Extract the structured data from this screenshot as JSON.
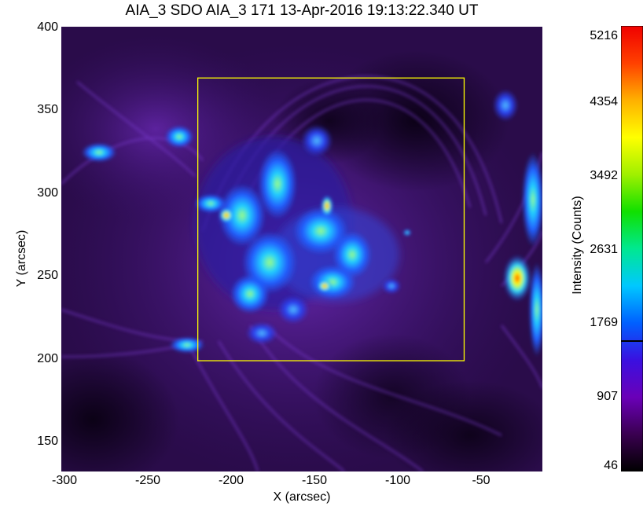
{
  "title": "AIA_3 SDO AIA_3 171 13-Apr-2016 19:13:22.340 UT",
  "x_axis": {
    "label": "X (arcsec)",
    "range": [
      -302,
      -13
    ],
    "ticks": [
      "-300",
      "-250",
      "-200",
      "-150",
      "-100",
      "-50"
    ],
    "tick_values": [
      -300,
      -250,
      -200,
      -150,
      -100,
      -50
    ]
  },
  "y_axis": {
    "label": "Y (arcsec)",
    "range": [
      133,
      402
    ],
    "ticks": [
      "150",
      "200",
      "250",
      "300",
      "350",
      "400"
    ],
    "tick_values": [
      150,
      200,
      250,
      300,
      350,
      400
    ]
  },
  "colorbar": {
    "label": "Intensity (Counts)",
    "range": [
      46,
      5216
    ],
    "ticks": [
      "5216",
      "4354",
      "3492",
      "2631",
      "1769",
      "907",
      "46"
    ],
    "tick_values": [
      5216,
      4354,
      3492,
      2631,
      1769,
      907,
      46
    ],
    "marker_value": 1560,
    "colormap": [
      "#000000",
      "#3a0050",
      "#6a00b8",
      "#3a10e0",
      "#0060ff",
      "#00c8ff",
      "#00e890",
      "#10e000",
      "#a0f000",
      "#ffff00",
      "#ffb000",
      "#ff4000",
      "#f00000"
    ]
  },
  "region_box": {
    "x_range": [
      -220,
      -60
    ],
    "y_range": [
      200,
      371
    ],
    "color": "#ffff00"
  },
  "colors": {
    "background": "#ffffff",
    "image_base": "#1a0830",
    "loop": "#6b2bb8"
  }
}
